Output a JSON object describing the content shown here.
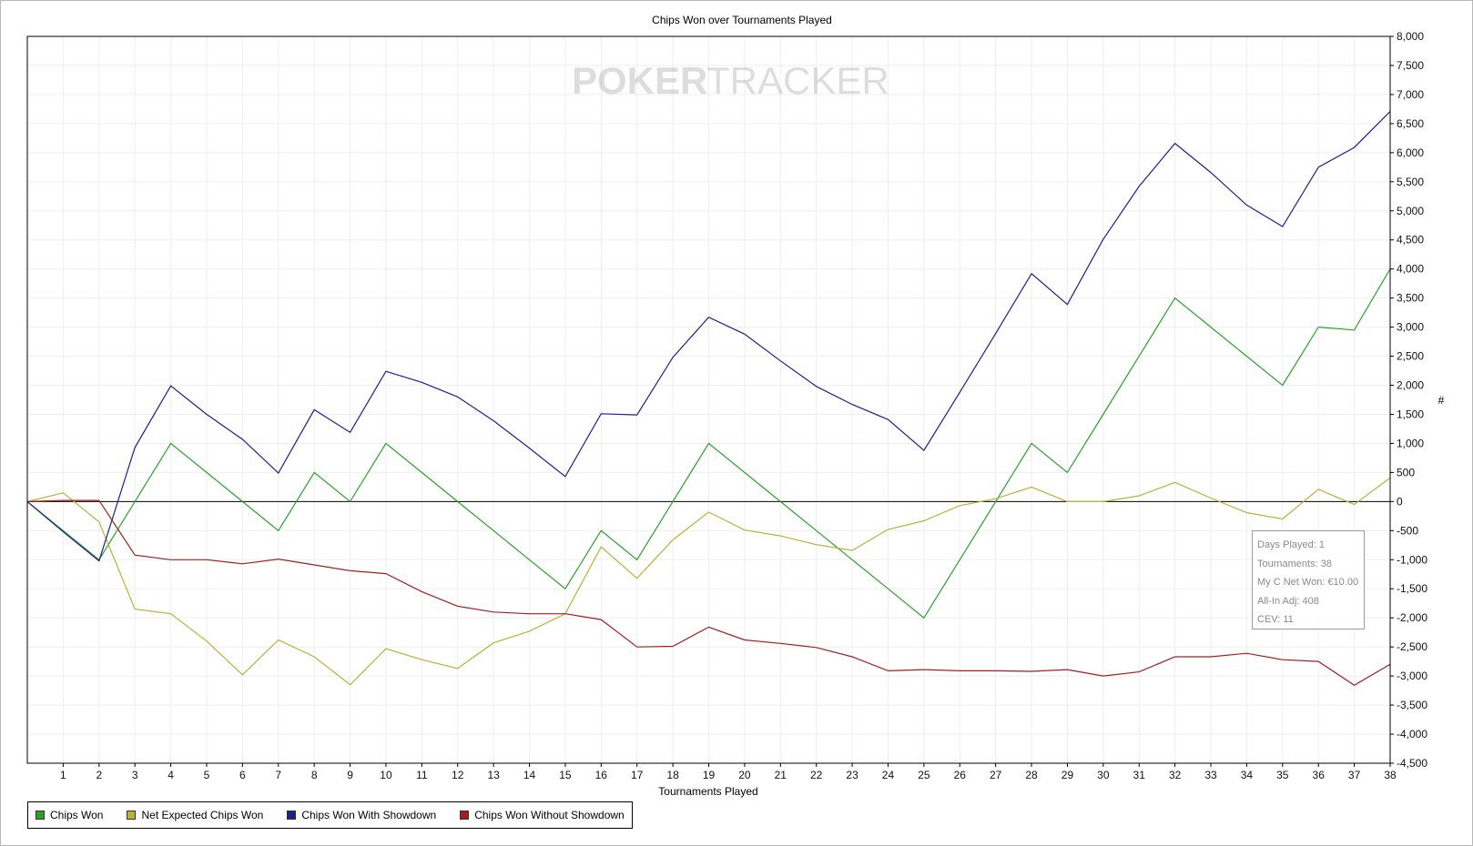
{
  "watermark": {
    "part1": "POKER",
    "part2": "TRACKER"
  },
  "chart_data": {
    "type": "line",
    "title": "Chips Won over Tournaments Played",
    "xlabel": "Tournaments Played",
    "ylabel": "#",
    "xlim": [
      0,
      38
    ],
    "ylim": [
      -4500,
      8000
    ],
    "x_ticks": [
      1,
      2,
      3,
      4,
      5,
      6,
      7,
      8,
      9,
      10,
      11,
      12,
      13,
      14,
      15,
      16,
      17,
      18,
      19,
      20,
      21,
      22,
      23,
      24,
      25,
      26,
      27,
      28,
      29,
      30,
      31,
      32,
      33,
      34,
      35,
      36,
      37,
      38
    ],
    "y_ticks": [
      8000,
      7500,
      7000,
      6500,
      6000,
      5500,
      5000,
      4500,
      4000,
      3500,
      3000,
      2500,
      2000,
      1500,
      1000,
      500,
      0,
      -500,
      -1000,
      -1500,
      -2000,
      -2500,
      -3000,
      -3500,
      -4000,
      -4500
    ],
    "y_tick_labels": [
      "8,000",
      "7,500",
      "7,000",
      "6,500",
      "6,000",
      "5,500",
      "5,000",
      "4,500",
      "4,000",
      "3,500",
      "3,000",
      "2,500",
      "2,000",
      "1,500",
      "1,000",
      "500",
      "0",
      "-500",
      "-1,000",
      "-1,500",
      "-2,000",
      "-2,500",
      "-3,000",
      "-3,500",
      "-4,000",
      "-4,500"
    ],
    "y_axis_side": "right",
    "grid": true,
    "legend_position": "bottom-left",
    "x": [
      0,
      1,
      2,
      3,
      4,
      5,
      6,
      7,
      8,
      9,
      10,
      11,
      12,
      13,
      14,
      15,
      16,
      17,
      18,
      19,
      20,
      21,
      22,
      23,
      24,
      25,
      26,
      27,
      28,
      29,
      30,
      31,
      32,
      33,
      34,
      35,
      36,
      37,
      38
    ],
    "series": [
      {
        "name": "Chips Won",
        "color": "#2ca02c",
        "values": [
          0,
          -500,
          -1000,
          0,
          1000,
          500,
          0,
          -500,
          500,
          0,
          1000,
          500,
          0,
          -500,
          -1000,
          -1500,
          -500,
          -1000,
          0,
          1000,
          500,
          0,
          -500,
          -1000,
          -1500,
          -2000,
          -1000,
          0,
          1000,
          500,
          1500,
          2500,
          3500,
          3000,
          2500,
          2000,
          3000,
          2950,
          4000
        ]
      },
      {
        "name": "Net Expected Chips Won",
        "color": "#b5b33a",
        "values": [
          0,
          150,
          -350,
          -1850,
          -1930,
          -2400,
          -2980,
          -2380,
          -2670,
          -3150,
          -2530,
          -2720,
          -2870,
          -2430,
          -2230,
          -1930,
          -780,
          -1320,
          -660,
          -180,
          -490,
          -590,
          -740,
          -840,
          -480,
          -330,
          -70,
          50,
          250,
          0,
          0,
          100,
          330,
          60,
          -190,
          -300,
          210,
          -50,
          410
        ]
      },
      {
        "name": "Chips Won With Showdown",
        "color": "#1f1f8f",
        "values": [
          0,
          -520,
          -1020,
          930,
          1990,
          1500,
          1070,
          490,
          1580,
          1190,
          2240,
          2050,
          1800,
          1390,
          920,
          430,
          1510,
          1490,
          2480,
          3170,
          2880,
          2420,
          1980,
          1670,
          1410,
          880,
          1880,
          2890,
          3920,
          3390,
          4510,
          5420,
          6160,
          5660,
          5100,
          4730,
          5750,
          6090,
          6710
        ]
      },
      {
        "name": "Chips Won Without Showdown",
        "color": "#a02020",
        "values": [
          0,
          20,
          20,
          -920,
          -1000,
          -1000,
          -1070,
          -990,
          -1090,
          -1190,
          -1240,
          -1550,
          -1800,
          -1900,
          -1930,
          -1930,
          -2030,
          -2500,
          -2490,
          -2160,
          -2380,
          -2440,
          -2510,
          -2670,
          -2910,
          -2890,
          -2910,
          -2910,
          -2920,
          -2890,
          -3000,
          -2930,
          -2670,
          -2670,
          -2610,
          -2720,
          -2750,
          -3160,
          -2800
        ]
      }
    ]
  },
  "tooltip": {
    "lines": [
      "Days Played: 1",
      "Tournaments: 38",
      "My C Net Won: €10.00",
      "All-In Adj: 408",
      "CEV: 11"
    ]
  }
}
